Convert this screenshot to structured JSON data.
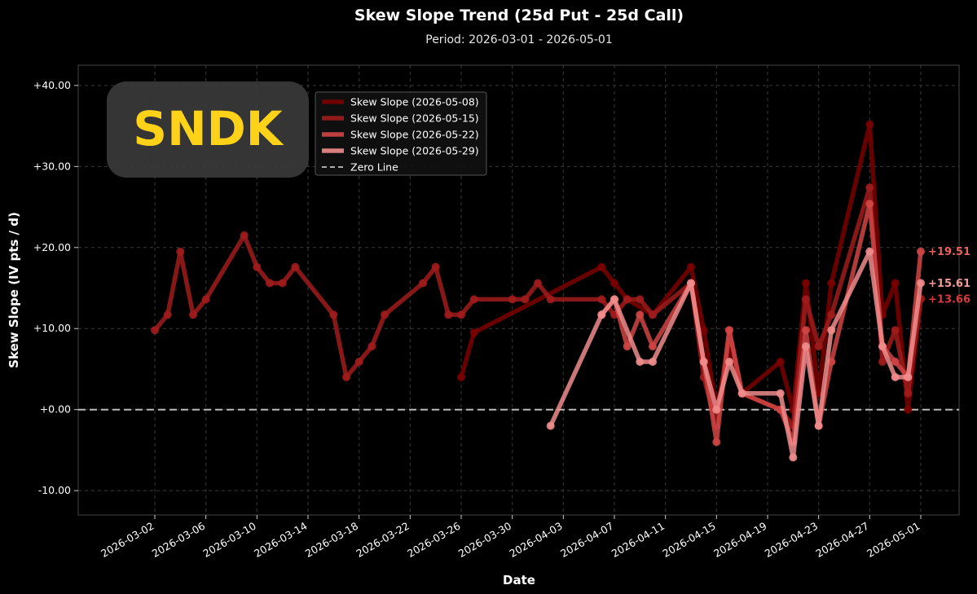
{
  "chart_data": {
    "type": "line",
    "title": "Skew Slope Trend (25d Put - 25d Call)",
    "subtitle": "Period: 2026-03-01 - 2026-05-01",
    "xlabel": "Date",
    "ylabel": "Skew Slope (IV pts / d)",
    "watermark": "SNDK",
    "x_range": [
      "2026-02-24",
      "2026-05-04"
    ],
    "ylim": [
      -13,
      42.5
    ],
    "y_ticks": [
      -10,
      0,
      10,
      20,
      30,
      40
    ],
    "y_tick_labels": [
      "-10.00",
      "+0.00",
      "+10.00",
      "+20.00",
      "+30.00",
      "+40.00"
    ],
    "x_ticks": [
      "2026-03-02",
      "2026-03-06",
      "2026-03-10",
      "2026-03-14",
      "2026-03-18",
      "2026-03-22",
      "2026-03-26",
      "2026-03-30",
      "2026-04-03",
      "2026-04-07",
      "2026-04-11",
      "2026-04-15",
      "2026-04-19",
      "2026-04-23",
      "2026-04-27",
      "2026-05-01"
    ],
    "grid": true,
    "legend_position": "top-left",
    "zero_line": {
      "label": "Zero Line",
      "y": 0,
      "color": "#bbbbbb"
    },
    "series": [
      {
        "name": "Skew Slope (2026-05-08)",
        "color": "#7a0000",
        "points": [
          [
            "2026-03-26",
            4.0
          ],
          [
            "2026-03-27",
            9.5
          ],
          [
            "2026-04-06",
            17.6
          ],
          [
            "2026-04-07",
            15.6
          ],
          [
            "2026-04-08",
            13.6
          ],
          [
            "2026-04-10",
            11.7
          ],
          [
            "2026-04-13",
            17.6
          ],
          [
            "2026-04-14",
            9.8
          ],
          [
            "2026-04-15",
            0.0
          ],
          [
            "2026-04-16",
            7.8
          ],
          [
            "2026-04-17",
            2.0
          ],
          [
            "2026-04-20",
            5.9
          ],
          [
            "2026-04-21",
            0.0
          ],
          [
            "2026-04-22",
            15.6
          ],
          [
            "2026-04-23",
            2.0
          ],
          [
            "2026-04-24",
            15.6
          ],
          [
            "2026-04-27",
            35.2
          ],
          [
            "2026-04-28",
            11.7
          ],
          [
            "2026-04-29",
            15.6
          ],
          [
            "2026-04-30",
            0.0
          ],
          [
            "2026-05-01",
            13.66
          ]
        ]
      },
      {
        "name": "Skew Slope (2026-05-15)",
        "color": "#a01c1c",
        "points": [
          [
            "2026-03-02",
            9.8
          ],
          [
            "2026-03-03",
            11.7
          ],
          [
            "2026-03-04",
            19.5
          ],
          [
            "2026-03-05",
            11.7
          ],
          [
            "2026-03-06",
            13.6
          ],
          [
            "2026-03-09",
            21.5
          ],
          [
            "2026-03-10",
            17.6
          ],
          [
            "2026-03-11",
            15.6
          ],
          [
            "2026-03-12",
            15.6
          ],
          [
            "2026-03-13",
            17.6
          ],
          [
            "2026-03-16",
            11.7
          ],
          [
            "2026-03-17",
            4.0
          ],
          [
            "2026-03-18",
            5.9
          ],
          [
            "2026-03-19",
            7.8
          ],
          [
            "2026-03-20",
            11.7
          ],
          [
            "2026-03-23",
            15.6
          ],
          [
            "2026-03-24",
            17.6
          ],
          [
            "2026-03-25",
            11.7
          ],
          [
            "2026-03-26",
            11.7
          ],
          [
            "2026-03-27",
            13.6
          ],
          [
            "2026-03-30",
            13.6
          ],
          [
            "2026-03-31",
            13.6
          ],
          [
            "2026-04-01",
            15.6
          ],
          [
            "2026-04-02",
            13.6
          ],
          [
            "2026-04-06",
            13.6
          ],
          [
            "2026-04-07",
            11.7
          ],
          [
            "2026-04-08",
            13.6
          ],
          [
            "2026-04-09",
            13.6
          ],
          [
            "2026-04-10",
            11.7
          ],
          [
            "2026-04-13",
            15.6
          ],
          [
            "2026-04-14",
            4.0
          ],
          [
            "2026-04-15",
            -2.0
          ],
          [
            "2026-04-16",
            9.8
          ],
          [
            "2026-04-17",
            2.0
          ],
          [
            "2026-04-20",
            0.0
          ],
          [
            "2026-04-21",
            -2.0
          ],
          [
            "2026-04-22",
            13.6
          ],
          [
            "2026-04-23",
            7.8
          ],
          [
            "2026-04-24",
            11.7
          ],
          [
            "2026-04-27",
            27.4
          ],
          [
            "2026-04-28",
            5.9
          ],
          [
            "2026-04-29",
            9.8
          ],
          [
            "2026-04-30",
            2.0
          ],
          [
            "2026-05-01",
            13.66
          ]
        ]
      },
      {
        "name": "Skew Slope (2026-05-22)",
        "color": "#d04545",
        "points": [
          [
            "2026-04-06",
            11.7
          ],
          [
            "2026-04-07",
            13.6
          ],
          [
            "2026-04-08",
            7.8
          ],
          [
            "2026-04-09",
            11.7
          ],
          [
            "2026-04-10",
            7.8
          ],
          [
            "2026-04-13",
            15.6
          ],
          [
            "2026-04-14",
            5.9
          ],
          [
            "2026-04-15",
            -4.0
          ],
          [
            "2026-04-16",
            9.8
          ],
          [
            "2026-04-17",
            2.0
          ],
          [
            "2026-04-20",
            0.0
          ],
          [
            "2026-04-21",
            -4.0
          ],
          [
            "2026-04-22",
            9.8
          ],
          [
            "2026-04-23",
            -2.0
          ],
          [
            "2026-04-24",
            5.9
          ],
          [
            "2026-04-27",
            25.4
          ],
          [
            "2026-04-28",
            7.8
          ],
          [
            "2026-04-29",
            5.9
          ],
          [
            "2026-04-30",
            4.0
          ],
          [
            "2026-05-01",
            19.51
          ]
        ]
      },
      {
        "name": "Skew Slope (2026-05-29)",
        "color": "#f08c8c",
        "points": [
          [
            "2026-04-02",
            -2.0
          ],
          [
            "2026-04-06",
            11.7
          ],
          [
            "2026-04-07",
            13.6
          ],
          [
            "2026-04-09",
            5.9
          ],
          [
            "2026-04-10",
            5.9
          ],
          [
            "2026-04-13",
            15.6
          ],
          [
            "2026-04-14",
            5.9
          ],
          [
            "2026-04-15",
            0.0
          ],
          [
            "2026-04-16",
            5.9
          ],
          [
            "2026-04-17",
            2.0
          ],
          [
            "2026-04-20",
            2.0
          ],
          [
            "2026-04-21",
            -5.9
          ],
          [
            "2026-04-22",
            7.8
          ],
          [
            "2026-04-23",
            -2.0
          ],
          [
            "2026-04-24",
            9.8
          ],
          [
            "2026-04-27",
            19.5
          ],
          [
            "2026-04-28",
            7.8
          ],
          [
            "2026-04-29",
            4.0
          ],
          [
            "2026-04-30",
            4.0
          ],
          [
            "2026-05-01",
            15.61
          ]
        ]
      }
    ],
    "end_labels": [
      {
        "text": "+19.51",
        "value": 19.51,
        "color": "#e86060"
      },
      {
        "text": "+15.61",
        "value": 15.61,
        "color": "#f29a9a"
      },
      {
        "text": "+13.66",
        "value": 13.66,
        "color": "#d83a3a"
      }
    ]
  }
}
